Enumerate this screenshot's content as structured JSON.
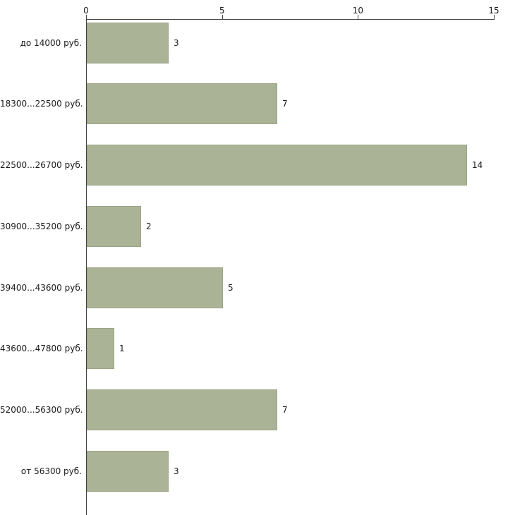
{
  "chart_data": {
    "type": "bar",
    "orientation": "horizontal",
    "title": "",
    "xlabel": "",
    "ylabel": "",
    "categories": [
      "до 14000 руб.",
      "18300...22500 руб.",
      "22500...26700 руб.",
      "30900...35200 руб.",
      "39400...43600 руб.",
      "43600...47800 руб.",
      "52000...56300 руб.",
      "от 56300 руб."
    ],
    "values": [
      3,
      7,
      14,
      2,
      5,
      1,
      7,
      3
    ],
    "value_labels": [
      "3",
      "7",
      "14",
      "2",
      "5",
      "1",
      "7",
      "3"
    ],
    "x_ticks": [
      "0",
      "5",
      "10",
      "15"
    ],
    "x_tick_values": [
      0,
      5,
      10,
      15
    ],
    "xlim": [
      0,
      15
    ],
    "grid": false,
    "legend": false,
    "axis_position": "top-left",
    "colors": {
      "bar_fill": "#abb396",
      "bar_border": "#9aa485",
      "axis": "#444444",
      "text": "#1a1a1a",
      "background": "#ffffff"
    }
  }
}
